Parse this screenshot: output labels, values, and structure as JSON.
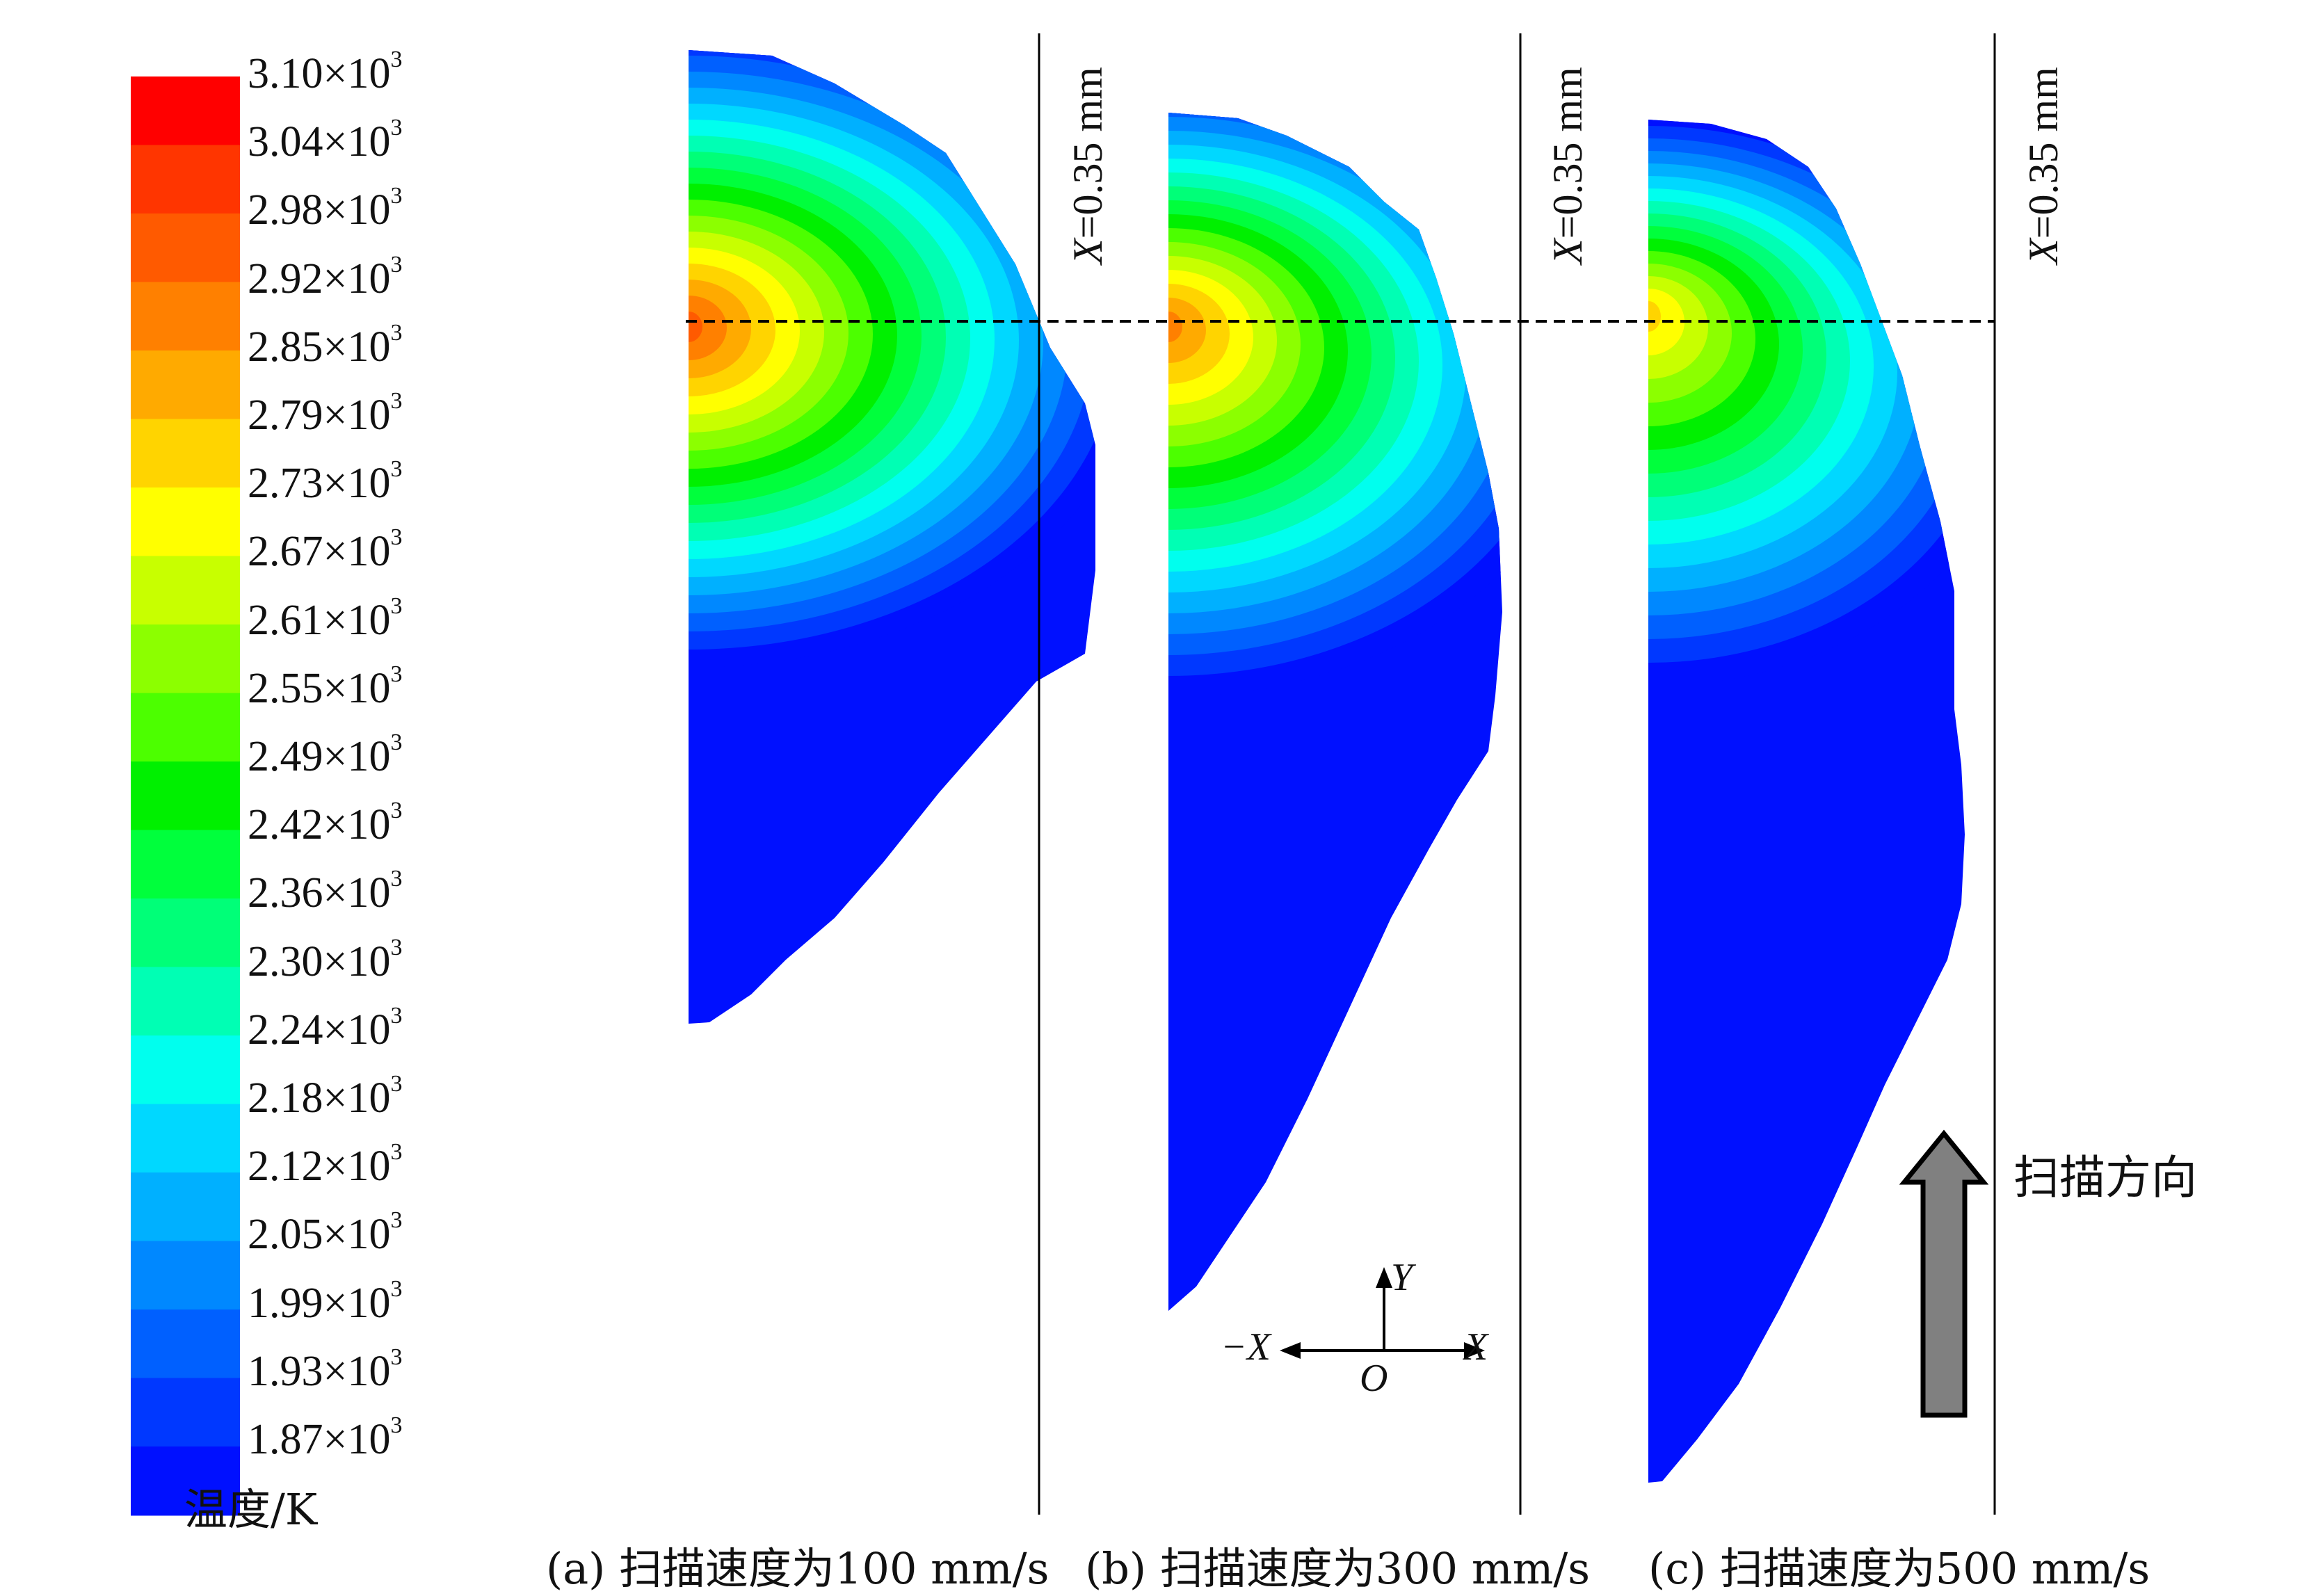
{
  "legend": {
    "title": "温度/K",
    "levels": [
      {
        "label": "3.10",
        "exp": "3",
        "color": "#ff0000"
      },
      {
        "label": "3.04",
        "exp": "3",
        "color": "#ff3500"
      },
      {
        "label": "2.98",
        "exp": "3",
        "color": "#ff5a00"
      },
      {
        "label": "2.92",
        "exp": "3",
        "color": "#ff8000"
      },
      {
        "label": "2.85",
        "exp": "3",
        "color": "#ffaa00"
      },
      {
        "label": "2.79",
        "exp": "3",
        "color": "#ffd400"
      },
      {
        "label": "2.73",
        "exp": "3",
        "color": "#ffff00"
      },
      {
        "label": "2.67",
        "exp": "3",
        "color": "#c8ff00"
      },
      {
        "label": "2.61",
        "exp": "3",
        "color": "#8cff00"
      },
      {
        "label": "2.55",
        "exp": "3",
        "color": "#4cff00"
      },
      {
        "label": "2.49",
        "exp": "3",
        "color": "#00f000"
      },
      {
        "label": "2.42",
        "exp": "3",
        "color": "#00ff3c"
      },
      {
        "label": "2.36",
        "exp": "3",
        "color": "#00ff78"
      },
      {
        "label": "2.30",
        "exp": "3",
        "color": "#00ffb4"
      },
      {
        "label": "2.24",
        "exp": "3",
        "color": "#00ffee"
      },
      {
        "label": "2.18",
        "exp": "3",
        "color": "#00d8ff"
      },
      {
        "label": "2.12",
        "exp": "3",
        "color": "#00b0ff"
      },
      {
        "label": "2.05",
        "exp": "3",
        "color": "#0088ff"
      },
      {
        "label": "1.99",
        "exp": "3",
        "color": "#0060ff"
      },
      {
        "label": "1.93",
        "exp": "3",
        "color": "#0038ff"
      },
      {
        "label": "1.87",
        "exp": "3",
        "color": "#0010ff"
      }
    ]
  },
  "panels": [
    {
      "caption": "(a) 扫描速度为100 mm/s",
      "line_label_var": "X",
      "line_label_rest": "=0.35 mm"
    },
    {
      "caption": "(b) 扫描速度为300 mm/s",
      "line_label_var": "X",
      "line_label_rest": "=0.35 mm"
    },
    {
      "caption": "(c) 扫描速度为500 mm/s",
      "line_label_var": "X",
      "line_label_rest": "=0.35 mm"
    }
  ],
  "axes": {
    "y": "Y",
    "x": "X",
    "neg_x": "−X",
    "origin": "O"
  },
  "direction_label": "扫描方向",
  "colors": {
    "arrow_fill": "#808080",
    "line": "#000000",
    "pool_base": "#0010ff"
  }
}
